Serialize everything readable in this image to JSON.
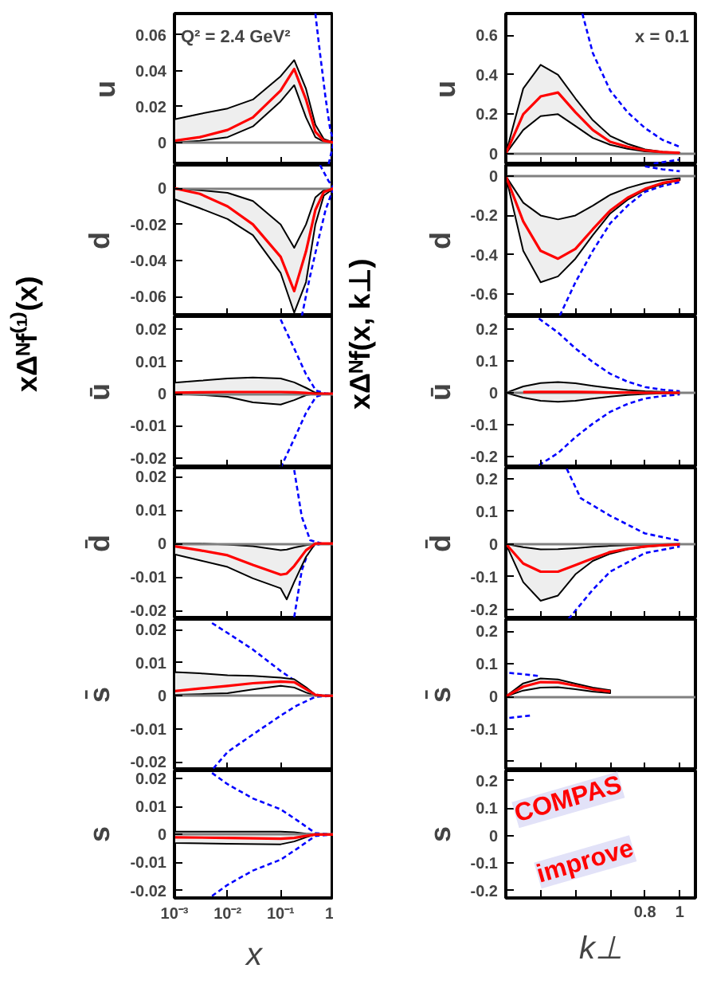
{
  "chart_data": [
    {
      "type": "line",
      "title": "xΔᴺf⁽¹⁾(x)",
      "ylabel": "u",
      "log": "x",
      "xlim": [
        0.001,
        1
      ],
      "ylim": [
        -0.0125,
        0.072
      ],
      "xticks": [
        0.001,
        0.01,
        0.1,
        1
      ],
      "yticks": [
        0,
        0.02,
        0.04,
        0.06
      ],
      "tick_labels": "y",
      "annotations": [
        "Q² = 2.4 GeV²"
      ],
      "ref_lines": [
        {
          "axis": "y",
          "value": 0,
          "color": "#808080"
        }
      ],
      "series": [
        {
          "type": "line",
          "color": "#0000ff",
          "line_style": "dashed",
          "x": [
            0.45,
            0.55,
            0.7,
            0.85,
            1
          ],
          "values": [
            0.072,
            0.05,
            0.025,
            0.008,
            0
          ]
        },
        {
          "type": "line",
          "color": "#0000ff",
          "line_style": "dashed",
          "x": [
            0.8,
            1
          ],
          "values": [
            -0.012,
            0
          ]
        },
        {
          "type": "line",
          "color": "#ff0000",
          "x": [
            0.001,
            0.003,
            0.01,
            0.03,
            0.1,
            0.18,
            0.3,
            0.45,
            0.65,
            1
          ],
          "values": [
            0.001,
            0.003,
            0.007,
            0.014,
            0.029,
            0.041,
            0.024,
            0.006,
            0.001,
            0
          ],
          "lower": [
            0,
            0.001,
            0.003,
            0.009,
            0.023,
            0.032,
            0.014,
            0.003,
            0.0005,
            0
          ],
          "upper": [
            0.013,
            0.016,
            0.019,
            0.024,
            0.037,
            0.046,
            0.03,
            0.01,
            0.002,
            0
          ]
        }
      ]
    },
    {
      "type": "line",
      "ylabel": "d",
      "log": "x",
      "xlim": [
        0.001,
        1
      ],
      "ylim": [
        -0.071,
        0.013
      ],
      "xticks": [
        0.001,
        0.01,
        0.1,
        1
      ],
      "yticks": [
        -0.06,
        -0.04,
        -0.02,
        0
      ],
      "tick_labels": "y",
      "ref_lines": [
        {
          "axis": "y",
          "value": 0,
          "color": "#808080"
        }
      ],
      "series": [
        {
          "type": "line",
          "color": "#0000ff",
          "line_style": "dashed",
          "x": [
            0.55,
            0.8,
            1
          ],
          "values": [
            0.013,
            0.004,
            0
          ]
        },
        {
          "type": "line",
          "color": "#0000ff",
          "line_style": "dashed",
          "x": [
            0.25,
            0.35,
            0.5,
            0.7,
            0.9,
            1
          ],
          "values": [
            -0.071,
            -0.05,
            -0.03,
            -0.012,
            -0.003,
            0
          ]
        },
        {
          "type": "line",
          "color": "#ff0000",
          "x": [
            0.001,
            0.003,
            0.01,
            0.03,
            0.1,
            0.18,
            0.3,
            0.45,
            0.65,
            1
          ],
          "values": [
            0,
            -0.003,
            -0.01,
            -0.02,
            -0.038,
            -0.057,
            -0.035,
            -0.012,
            -0.002,
            0
          ],
          "lower": [
            -0.006,
            -0.011,
            -0.017,
            -0.026,
            -0.047,
            -0.069,
            -0.052,
            -0.02,
            -0.004,
            0
          ],
          "upper": [
            0,
            -0.001,
            -0.0025,
            -0.007,
            -0.02,
            -0.033,
            -0.02,
            -0.005,
            -0.001,
            0
          ]
        }
      ]
    },
    {
      "type": "line",
      "ylabel": "ū",
      "log": "x",
      "xlim": [
        0.001,
        1
      ],
      "ylim": [
        -0.023,
        0.024
      ],
      "xticks": [
        0.001,
        0.01,
        0.1,
        1
      ],
      "yticks": [
        -0.02,
        -0.01,
        0,
        0.01,
        0.02
      ],
      "tick_labels": "y",
      "ref_lines": [
        {
          "axis": "y",
          "value": 0,
          "color": "#808080"
        }
      ],
      "series": [
        {
          "type": "line",
          "color": "#0000ff",
          "line_style": "dashed",
          "x": [
            0.1,
            0.18,
            0.3,
            0.46,
            0.7,
            1
          ],
          "values": [
            0.023,
            0.014,
            0.006,
            0.001,
            0,
            0
          ]
        },
        {
          "type": "line",
          "color": "#0000ff",
          "line_style": "dashed",
          "x": [
            0.1,
            0.18,
            0.3,
            0.46,
            0.7,
            1
          ],
          "values": [
            -0.023,
            -0.014,
            -0.006,
            -0.001,
            0,
            0
          ]
        },
        {
          "type": "line",
          "color": "#ff0000",
          "x": [
            0.001,
            0.003,
            0.01,
            0.03,
            0.1,
            0.18,
            0.3,
            0.45,
            0.65,
            1
          ],
          "values": [
            0.0003,
            0.0004,
            0.0005,
            0.0005,
            0.0005,
            0.0004,
            0.0002,
            0,
            0,
            0
          ],
          "lower": [
            0,
            -0.0004,
            -0.001,
            -0.0027,
            -0.0034,
            -0.002,
            -0.0005,
            0,
            0,
            0
          ],
          "upper": [
            0.0034,
            0.004,
            0.0047,
            0.005,
            0.0047,
            0.0035,
            0.0018,
            0.0003,
            0,
            0
          ]
        }
      ]
    },
    {
      "type": "line",
      "ylabel": "d̄",
      "log": "x",
      "xlim": [
        0.001,
        1
      ],
      "ylim": [
        -0.0226,
        0.0227
      ],
      "xticks": [
        0.001,
        0.01,
        0.1,
        1
      ],
      "yticks": [
        -0.02,
        -0.01,
        0,
        0.01,
        0.02
      ],
      "tick_labels": "y",
      "ref_lines": [
        {
          "axis": "y",
          "value": 0,
          "color": "#808080"
        }
      ],
      "series": [
        {
          "type": "line",
          "color": "#0000ff",
          "line_style": "dashed",
          "x": [
            0.18,
            0.25,
            0.36,
            0.6,
            1
          ],
          "values": [
            0.022,
            0.008,
            0.001,
            0,
            0
          ]
        },
        {
          "type": "line",
          "color": "#0000ff",
          "line_style": "dashed",
          "x": [
            0.18,
            0.25,
            0.36,
            0.6,
            1
          ],
          "values": [
            -0.022,
            -0.008,
            -0.001,
            0,
            0
          ]
        },
        {
          "type": "line",
          "color": "#ff0000",
          "x": [
            0.001,
            0.003,
            0.01,
            0.03,
            0.1,
            0.13,
            0.18,
            0.3,
            0.45,
            0.65,
            1
          ],
          "values": [
            -0.0008,
            -0.002,
            -0.0035,
            -0.0064,
            -0.0093,
            -0.009,
            -0.0067,
            -0.002,
            0,
            0,
            0
          ],
          "lower": [
            -0.0032,
            -0.005,
            -0.007,
            -0.0104,
            -0.0134,
            -0.0167,
            -0.0115,
            -0.004,
            0,
            0,
            0
          ],
          "upper": [
            0,
            0,
            -0.0003,
            -0.0008,
            -0.002,
            -0.0018,
            -0.0012,
            -0.0005,
            0,
            0,
            0
          ]
        }
      ]
    },
    {
      "type": "line",
      "ylabel": "s̄",
      "log": "x",
      "xlim": [
        0.001,
        1
      ],
      "ylim": [
        -0.0226,
        0.0232
      ],
      "xticks": [
        0.001,
        0.01,
        0.1,
        1
      ],
      "yticks": [
        -0.02,
        -0.01,
        0,
        0.01,
        0.02
      ],
      "tick_labels": "y",
      "ref_lines": [
        {
          "axis": "y",
          "value": 0,
          "color": "#808080"
        }
      ],
      "series": [
        {
          "type": "line",
          "color": "#0000ff",
          "line_style": "dashed",
          "x": [
            0.0051,
            0.01,
            0.03,
            0.1,
            0.45,
            1
          ],
          "values": [
            0.022,
            0.019,
            0.014,
            0.0075,
            0.0003,
            0
          ]
        },
        {
          "type": "line",
          "color": "#0000ff",
          "line_style": "dashed",
          "x": [
            0.0054,
            0.01,
            0.03,
            0.1,
            0.2,
            0.45,
            1
          ],
          "values": [
            -0.022,
            -0.017,
            -0.0117,
            -0.006,
            -0.003,
            -0.0003,
            0
          ]
        },
        {
          "type": "line",
          "color": "#ff0000",
          "x": [
            0.001,
            0.003,
            0.01,
            0.03,
            0.1,
            0.18,
            0.3,
            0.45,
            0.65,
            1
          ],
          "values": [
            0.0014,
            0.0022,
            0.003,
            0.0038,
            0.0043,
            0.0041,
            0.002,
            0.0003,
            0,
            0
          ],
          "lower": [
            0.0003,
            0.0005,
            0.0008,
            0.0019,
            0.003,
            0.0025,
            0.001,
            0,
            0,
            0
          ],
          "upper": [
            0.0072,
            0.0068,
            0.0062,
            0.006,
            0.0055,
            0.005,
            0.0026,
            0.0003,
            0,
            0
          ]
        }
      ]
    },
    {
      "type": "line",
      "ylabel": "s",
      "xlabel": "x",
      "log": "x",
      "xlim": [
        0.001,
        1
      ],
      "ylim": [
        -0.0227,
        0.0229
      ],
      "xticks": [
        {
          "value": 0.001,
          "label": "10⁻³"
        },
        {
          "value": 0.01,
          "label": "10⁻²"
        },
        {
          "value": 0.1,
          "label": "10⁻¹"
        },
        1
      ],
      "yticks": [
        -0.02,
        -0.01,
        0,
        0.01,
        0.02
      ],
      "ref_lines": [
        {
          "axis": "y",
          "value": 0,
          "color": "#808080"
        }
      ],
      "series": [
        {
          "type": "line",
          "color": "#0000ff",
          "line_style": "dashed",
          "x": [
            0.0051,
            0.01,
            0.03,
            0.1,
            0.2,
            0.45,
            1
          ],
          "values": [
            0.022,
            0.018,
            0.0129,
            0.009,
            0.0052,
            0.0005,
            0
          ]
        },
        {
          "type": "line",
          "color": "#0000ff",
          "line_style": "dashed",
          "x": [
            0.0051,
            0.01,
            0.03,
            0.1,
            0.2,
            0.45,
            1
          ],
          "values": [
            -0.022,
            -0.018,
            -0.0129,
            -0.009,
            -0.0052,
            -0.0005,
            0
          ]
        },
        {
          "type": "line",
          "color": "#ff0000",
          "x": [
            0.001,
            0.01,
            0.1,
            0.18,
            0.3,
            0.45,
            1
          ],
          "values": [
            -0.001,
            -0.0012,
            -0.0015,
            -0.0012,
            -0.0005,
            0,
            0
          ],
          "lower": [
            -0.003,
            -0.0033,
            -0.0035,
            -0.0025,
            -0.001,
            0,
            0
          ],
          "upper": [
            0.001,
            0.001,
            0.001,
            0.0008,
            0.0003,
            0,
            0
          ]
        }
      ]
    },
    {
      "type": "line",
      "title": "xΔᴺf(x, k⊥)",
      "ylabel": "u",
      "xlim": [
        0,
        1.09
      ],
      "ylim": [
        -0.057,
        0.71
      ],
      "xticks": [
        0.2,
        0.4,
        0.6,
        0.8,
        1
      ],
      "yticks": [
        0,
        0.2,
        0.4,
        0.6
      ],
      "tick_labels": "y",
      "annotations": [
        "x = 0.1"
      ],
      "ref_lines": [
        {
          "axis": "y",
          "value": 0,
          "color": "#808080"
        }
      ],
      "series": [
        {
          "type": "line",
          "color": "#0000ff",
          "line_style": "dashed",
          "x": [
            0.44,
            0.5,
            0.6,
            0.7,
            0.8,
            0.9,
            1
          ],
          "values": [
            0.71,
            0.51,
            0.32,
            0.21,
            0.13,
            0.07,
            0.035
          ]
        },
        {
          "type": "line",
          "color": "#0000ff",
          "line_style": "dashed",
          "x": [
            0.85,
            1
          ],
          "values": [
            -0.05,
            -0.03
          ]
        },
        {
          "type": "line",
          "color": "#ff0000",
          "x": [
            0,
            0.1,
            0.2,
            0.3,
            0.4,
            0.5,
            0.6,
            0.7,
            0.8,
            0.9,
            1
          ],
          "values": [
            0,
            0.2,
            0.29,
            0.31,
            0.21,
            0.12,
            0.06,
            0.035,
            0.017,
            0.008,
            0.004
          ],
          "lower": [
            0,
            0.12,
            0.19,
            0.2,
            0.14,
            0.08,
            0.045,
            0.025,
            0.012,
            0.006,
            0.003
          ],
          "upper": [
            0,
            0.33,
            0.45,
            0.4,
            0.28,
            0.17,
            0.09,
            0.05,
            0.022,
            0.01,
            0.005
          ]
        }
      ]
    },
    {
      "type": "line",
      "ylabel": "d",
      "xlim": [
        0,
        1.09
      ],
      "ylim": [
        -0.713,
        0.057
      ],
      "xticks": [
        0.2,
        0.4,
        0.6,
        0.8,
        1
      ],
      "yticks": [
        -0.6,
        -0.4,
        -0.2,
        0
      ],
      "tick_labels": "y",
      "ref_lines": [
        {
          "axis": "y",
          "value": 0,
          "color": "#808080"
        }
      ],
      "series": [
        {
          "type": "line",
          "color": "#0000ff",
          "line_style": "dashed",
          "x": [
            0.8,
            0.9,
            1
          ],
          "values": [
            0.05,
            0.035,
            0.025
          ]
        },
        {
          "type": "line",
          "color": "#0000ff",
          "line_style": "dashed",
          "x": [
            0.31,
            0.4,
            0.5,
            0.6,
            0.7,
            0.8,
            0.9,
            1
          ],
          "values": [
            -0.71,
            -0.54,
            -0.38,
            -0.24,
            -0.15,
            -0.08,
            -0.05,
            -0.03
          ]
        },
        {
          "type": "line",
          "color": "#ff0000",
          "x": [
            0,
            0.1,
            0.2,
            0.3,
            0.4,
            0.5,
            0.6,
            0.7,
            0.8,
            0.9,
            1
          ],
          "values": [
            0,
            -0.23,
            -0.38,
            -0.42,
            -0.37,
            -0.27,
            -0.175,
            -0.11,
            -0.065,
            -0.035,
            -0.02
          ],
          "lower": [
            0,
            -0.38,
            -0.54,
            -0.51,
            -0.42,
            -0.3,
            -0.19,
            -0.12,
            -0.07,
            -0.04,
            -0.02
          ],
          "upper": [
            0,
            -0.135,
            -0.2,
            -0.22,
            -0.2,
            -0.15,
            -0.095,
            -0.06,
            -0.035,
            -0.02,
            -0.01
          ]
        }
      ]
    },
    {
      "type": "line",
      "ylabel": "ū",
      "xlim": [
        0,
        1.09
      ],
      "ylim": [
        -0.236,
        0.241
      ],
      "xticks": [
        0.2,
        0.4,
        0.6,
        0.8,
        1
      ],
      "yticks": [
        -0.2,
        -0.1,
        0,
        0.1,
        0.2
      ],
      "tick_labels": "y",
      "ref_lines": [
        {
          "axis": "y",
          "value": 0,
          "color": "#808080"
        }
      ],
      "series": [
        {
          "type": "line",
          "color": "#0000ff",
          "line_style": "dashed",
          "x": [
            0.19,
            0.3,
            0.4,
            0.5,
            0.6,
            0.7,
            0.8,
            0.9,
            1
          ],
          "values": [
            0.234,
            0.19,
            0.14,
            0.097,
            0.06,
            0.035,
            0.018,
            0.01,
            0.005
          ]
        },
        {
          "type": "line",
          "color": "#0000ff",
          "line_style": "dashed",
          "x": [
            0.19,
            0.3,
            0.4,
            0.5,
            0.6,
            0.7,
            0.8,
            0.9,
            1
          ],
          "values": [
            -0.228,
            -0.19,
            -0.14,
            -0.097,
            -0.06,
            -0.035,
            -0.018,
            -0.01,
            -0.005
          ]
        },
        {
          "type": "line",
          "color": "#ff0000",
          "x": [
            0,
            0.1,
            0.2,
            0.3,
            0.4,
            0.5,
            0.6,
            0.7,
            0.8,
            0.9,
            1
          ],
          "values": [
            null,
            0.002,
            0.003,
            0.003,
            0.003,
            0.002,
            0.001,
            0.001,
            0,
            0,
            0
          ],
          "lower": [
            0,
            -0.015,
            -0.025,
            -0.028,
            -0.025,
            -0.018,
            -0.012,
            -0.007,
            -0.004,
            -0.002,
            -0.001
          ],
          "upper": [
            0,
            0.02,
            0.031,
            0.034,
            0.03,
            0.022,
            0.015,
            0.009,
            0.005,
            0.003,
            0.001
          ]
        }
      ]
    },
    {
      "type": "line",
      "ylabel": "d̄",
      "xlim": [
        0,
        1.09
      ],
      "ylim": [
        -0.23,
        0.233
      ],
      "xticks": [
        0.2,
        0.4,
        0.6,
        0.8,
        1
      ],
      "yticks": [
        -0.2,
        -0.1,
        0,
        0.1,
        0.2
      ],
      "tick_labels": "y",
      "ref_lines": [
        {
          "axis": "y",
          "value": 0,
          "color": "#808080"
        }
      ],
      "series": [
        {
          "type": "line",
          "color": "#0000ff",
          "line_style": "dashed",
          "x": [
            0.35,
            0.43,
            0.6,
            0.8,
            1
          ],
          "values": [
            0.23,
            0.14,
            0.086,
            0.032,
            0.01
          ]
        },
        {
          "type": "line",
          "color": "#0000ff",
          "line_style": "dashed",
          "x": [
            0.36,
            0.5,
            0.6,
            0.8,
            1
          ],
          "values": [
            -0.23,
            -0.14,
            -0.085,
            -0.028,
            -0.008
          ]
        },
        {
          "type": "line",
          "color": "#ff0000",
          "x": [
            0,
            0.1,
            0.2,
            0.3,
            0.4,
            0.5,
            0.6,
            0.7,
            0.8,
            0.9,
            1
          ],
          "values": [
            0,
            -0.06,
            -0.085,
            -0.085,
            -0.065,
            -0.044,
            -0.025,
            -0.015,
            -0.008,
            -0.004,
            -0.002
          ],
          "lower": [
            0,
            -0.117,
            -0.174,
            -0.158,
            -0.093,
            -0.052,
            -0.03,
            -0.017,
            -0.009,
            -0.005,
            -0.002
          ],
          "upper": [
            0,
            -0.01,
            -0.017,
            -0.016,
            -0.013,
            -0.009,
            -0.006,
            -0.004,
            -0.002,
            -0.001,
            0
          ]
        }
      ]
    },
    {
      "type": "line",
      "ylabel": "s̄",
      "xlim": [
        0,
        1.09
      ],
      "ylim": [
        -0.227,
        0.237
      ],
      "xticks": [
        0.2,
        0.4,
        0.6,
        0.8,
        1
      ],
      "yticks": [
        {
          "value": -0.2,
          "label": null
        },
        -0.1,
        0,
        0.1,
        0.2
      ],
      "tick_labels": "y",
      "ref_lines": [
        {
          "axis": "y",
          "value": 0,
          "color": "#808080"
        }
      ],
      "series": [
        {
          "type": "line",
          "color": "#0000ff",
          "line_style": "dashed",
          "x": [
            0.02,
            0.1,
            0.2
          ],
          "values": [
            0.072,
            0.068,
            0.062
          ]
        },
        {
          "type": "line",
          "color": "#0000ff",
          "line_style": "dashed",
          "x": [
            0.02,
            0.1,
            0.15
          ],
          "values": [
            -0.066,
            -0.061,
            -0.058
          ]
        },
        {
          "type": "line",
          "color": "#ff0000",
          "x": [
            0,
            0.1,
            0.2,
            0.3,
            0.4,
            0.5,
            0.6
          ],
          "values": [
            0,
            0.03,
            0.044,
            0.043,
            0.033,
            0.022,
            0.015
          ],
          "lower": [
            0,
            0.018,
            0.027,
            0.028,
            0.022,
            0.015,
            0.01
          ],
          "upper": [
            0,
            0.04,
            0.055,
            0.052,
            0.039,
            0.027,
            0.019
          ]
        }
      ]
    },
    {
      "type": "line",
      "ylabel": "s",
      "xlabel": "k⊥",
      "xlim": [
        0,
        1.09
      ],
      "ylim": [
        -0.227,
        0.237
      ],
      "xticks": [
        {
          "value": 0.2,
          "label": null
        },
        {
          "value": 0.4,
          "label": null
        },
        {
          "value": 0.6,
          "label": null
        },
        0.8,
        1
      ],
      "yticks": [
        -0.2,
        -0.1,
        0,
        0.1,
        0.2
      ],
      "annotations": [
        "COMPAS",
        "improve"
      ]
    }
  ]
}
